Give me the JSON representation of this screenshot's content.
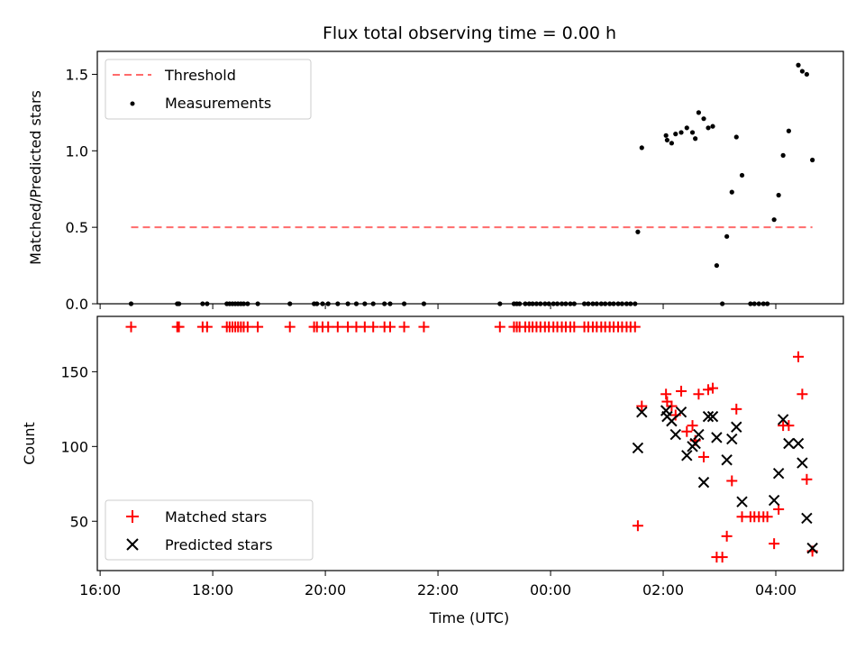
{
  "chart_data": [
    {
      "type": "scatter",
      "title": "Flux total observing time = 0.00 h",
      "xlabel": "",
      "ylabel": "Matched/Predicted stars",
      "x_unit": "hours relative to 00:00 UTC",
      "xlim": [
        -8.05,
        5.2
      ],
      "ylim": [
        0,
        1.65
      ],
      "yticks": [
        0.0,
        0.5,
        1.0,
        1.5
      ],
      "yticklabels": [
        "0.0",
        "0.5",
        "1.0",
        "1.5"
      ],
      "legend": {
        "position": "top-left",
        "entries": [
          "Threshold",
          "Measurements"
        ]
      },
      "threshold": {
        "name": "Threshold",
        "y": 0.5,
        "x_start": -7.45,
        "x_end": 4.65,
        "color": "#ff6b6b",
        "style": "dashed"
      },
      "series": [
        {
          "name": "Measurements",
          "color": "#000000",
          "points": [
            [
              -7.45,
              0
            ],
            [
              -6.63,
              0
            ],
            [
              -6.6,
              0
            ],
            [
              -6.18,
              0
            ],
            [
              -6.1,
              0
            ],
            [
              -5.75,
              0
            ],
            [
              -5.7,
              0
            ],
            [
              -5.65,
              0
            ],
            [
              -5.6,
              0
            ],
            [
              -5.55,
              0
            ],
            [
              -5.5,
              0
            ],
            [
              -5.45,
              0
            ],
            [
              -5.38,
              0
            ],
            [
              -5.2,
              0
            ],
            [
              -4.63,
              0
            ],
            [
              -4.2,
              0
            ],
            [
              -4.15,
              0
            ],
            [
              -4.05,
              0
            ],
            [
              -3.95,
              0
            ],
            [
              -3.78,
              0
            ],
            [
              -3.6,
              0
            ],
            [
              -3.45,
              0
            ],
            [
              -3.3,
              0
            ],
            [
              -3.15,
              0
            ],
            [
              -2.95,
              0
            ],
            [
              -2.85,
              0
            ],
            [
              -2.6,
              0
            ],
            [
              -2.25,
              0
            ],
            [
              -0.9,
              0
            ],
            [
              -0.65,
              0
            ],
            [
              -0.6,
              0
            ],
            [
              -0.55,
              0
            ],
            [
              -0.45,
              0
            ],
            [
              -0.38,
              0
            ],
            [
              -0.32,
              0
            ],
            [
              -0.25,
              0
            ],
            [
              -0.18,
              0
            ],
            [
              -0.1,
              0
            ],
            [
              -0.03,
              0
            ],
            [
              0.05,
              0
            ],
            [
              0.12,
              0
            ],
            [
              0.2,
              0
            ],
            [
              0.27,
              0
            ],
            [
              0.35,
              0
            ],
            [
              0.42,
              0
            ],
            [
              0.6,
              0
            ],
            [
              0.67,
              0
            ],
            [
              0.75,
              0
            ],
            [
              0.82,
              0
            ],
            [
              0.9,
              0
            ],
            [
              0.97,
              0
            ],
            [
              1.05,
              0
            ],
            [
              1.12,
              0
            ],
            [
              1.2,
              0
            ],
            [
              1.27,
              0
            ],
            [
              1.35,
              0
            ],
            [
              1.42,
              0
            ],
            [
              1.5,
              0
            ],
            [
              1.55,
              0.47
            ],
            [
              1.62,
              1.02
            ],
            [
              2.05,
              1.1
            ],
            [
              2.07,
              1.07
            ],
            [
              2.15,
              1.05
            ],
            [
              2.22,
              1.11
            ],
            [
              2.32,
              1.12
            ],
            [
              2.42,
              1.15
            ],
            [
              2.52,
              1.12
            ],
            [
              2.57,
              1.08
            ],
            [
              2.63,
              1.25
            ],
            [
              2.72,
              1.21
            ],
            [
              2.8,
              1.15
            ],
            [
              2.88,
              1.16
            ],
            [
              2.95,
              0.25
            ],
            [
              3.05,
              0
            ],
            [
              3.13,
              0.44
            ],
            [
              3.22,
              0.73
            ],
            [
              3.3,
              1.09
            ],
            [
              3.4,
              0.84
            ],
            [
              3.55,
              0
            ],
            [
              3.62,
              0
            ],
            [
              3.7,
              0
            ],
            [
              3.78,
              0
            ],
            [
              3.85,
              0
            ],
            [
              3.97,
              0.55
            ],
            [
              4.05,
              0.71
            ],
            [
              4.13,
              0.97
            ],
            [
              4.23,
              1.13
            ],
            [
              4.4,
              1.56
            ],
            [
              4.47,
              1.52
            ],
            [
              4.55,
              1.5
            ],
            [
              4.65,
              0.94
            ]
          ]
        }
      ]
    },
    {
      "type": "scatter",
      "title": "",
      "xlabel": "Time (UTC)",
      "ylabel": "Count",
      "x_unit": "hours relative to 00:00 UTC",
      "xlim": [
        -8.05,
        5.2
      ],
      "ylim": [
        17,
        187
      ],
      "yticks": [
        50,
        100,
        150
      ],
      "yticklabels": [
        "50",
        "100",
        "150"
      ],
      "xticks": [
        -8,
        -6,
        -4,
        -2,
        0,
        2,
        4
      ],
      "xticklabels": [
        "16:00",
        "18:00",
        "20:00",
        "22:00",
        "00:00",
        "02:00",
        "04:00"
      ],
      "legend": {
        "position": "bottom-left",
        "entries": [
          "Matched stars",
          "Predicted stars"
        ]
      },
      "series": [
        {
          "name": "Matched stars",
          "marker": "plus",
          "color": "#ff0000",
          "points": [
            [
              -7.45,
              180
            ],
            [
              -6.63,
              180
            ],
            [
              -6.6,
              180
            ],
            [
              -6.18,
              180
            ],
            [
              -6.1,
              180
            ],
            [
              -5.75,
              180
            ],
            [
              -5.7,
              180
            ],
            [
              -5.65,
              180
            ],
            [
              -5.6,
              180
            ],
            [
              -5.55,
              180
            ],
            [
              -5.5,
              180
            ],
            [
              -5.45,
              180
            ],
            [
              -5.38,
              180
            ],
            [
              -5.2,
              180
            ],
            [
              -4.63,
              180
            ],
            [
              -4.2,
              180
            ],
            [
              -4.15,
              180
            ],
            [
              -4.05,
              180
            ],
            [
              -3.95,
              180
            ],
            [
              -3.78,
              180
            ],
            [
              -3.6,
              180
            ],
            [
              -3.45,
              180
            ],
            [
              -3.3,
              180
            ],
            [
              -3.15,
              180
            ],
            [
              -2.95,
              180
            ],
            [
              -2.85,
              180
            ],
            [
              -2.6,
              180
            ],
            [
              -2.25,
              180
            ],
            [
              -0.9,
              180
            ],
            [
              -0.65,
              180
            ],
            [
              -0.6,
              180
            ],
            [
              -0.55,
              180
            ],
            [
              -0.45,
              180
            ],
            [
              -0.38,
              180
            ],
            [
              -0.32,
              180
            ],
            [
              -0.25,
              180
            ],
            [
              -0.18,
              180
            ],
            [
              -0.1,
              180
            ],
            [
              -0.03,
              180
            ],
            [
              0.05,
              180
            ],
            [
              0.12,
              180
            ],
            [
              0.2,
              180
            ],
            [
              0.27,
              180
            ],
            [
              0.35,
              180
            ],
            [
              0.42,
              180
            ],
            [
              0.6,
              180
            ],
            [
              0.67,
              180
            ],
            [
              0.75,
              180
            ],
            [
              0.82,
              180
            ],
            [
              0.9,
              180
            ],
            [
              0.97,
              180
            ],
            [
              1.05,
              180
            ],
            [
              1.12,
              180
            ],
            [
              1.2,
              180
            ],
            [
              1.27,
              180
            ],
            [
              1.35,
              180
            ],
            [
              1.42,
              180
            ],
            [
              1.5,
              180
            ],
            [
              1.55,
              47
            ],
            [
              1.62,
              127
            ],
            [
              2.05,
              135
            ],
            [
              2.07,
              130
            ],
            [
              2.15,
              127
            ],
            [
              2.22,
              121
            ],
            [
              2.32,
              137
            ],
            [
              2.42,
              110
            ],
            [
              2.52,
              114
            ],
            [
              2.57,
              104
            ],
            [
              2.63,
              135
            ],
            [
              2.72,
              93
            ],
            [
              2.8,
              138
            ],
            [
              2.88,
              139
            ],
            [
              2.95,
              26
            ],
            [
              3.05,
              26
            ],
            [
              3.13,
              40
            ],
            [
              3.22,
              77
            ],
            [
              3.3,
              125
            ],
            [
              3.4,
              53
            ],
            [
              3.55,
              53
            ],
            [
              3.62,
              53
            ],
            [
              3.7,
              53
            ],
            [
              3.78,
              53
            ],
            [
              3.85,
              53
            ],
            [
              3.97,
              35
            ],
            [
              4.05,
              58
            ],
            [
              4.13,
              114
            ],
            [
              4.23,
              114
            ],
            [
              4.4,
              160
            ],
            [
              4.47,
              135
            ],
            [
              4.55,
              78
            ],
            [
              4.65,
              30
            ]
          ]
        },
        {
          "name": "Predicted stars",
          "marker": "x",
          "color": "#000000",
          "points": [
            [
              1.55,
              99
            ],
            [
              1.62,
              123
            ],
            [
              2.05,
              124
            ],
            [
              2.07,
              120
            ],
            [
              2.15,
              117
            ],
            [
              2.22,
              108
            ],
            [
              2.32,
              123
            ],
            [
              2.42,
              94
            ],
            [
              2.52,
              100
            ],
            [
              2.57,
              102
            ],
            [
              2.63,
              108
            ],
            [
              2.72,
              76
            ],
            [
              2.8,
              120
            ],
            [
              2.88,
              120
            ],
            [
              2.95,
              106
            ],
            [
              3.13,
              91
            ],
            [
              3.22,
              105
            ],
            [
              3.3,
              113
            ],
            [
              3.4,
              63
            ],
            [
              3.97,
              64
            ],
            [
              4.05,
              82
            ],
            [
              4.13,
              118
            ],
            [
              4.23,
              102
            ],
            [
              4.4,
              102
            ],
            [
              4.47,
              89
            ],
            [
              4.55,
              52
            ],
            [
              4.65,
              32
            ]
          ]
        }
      ]
    }
  ]
}
